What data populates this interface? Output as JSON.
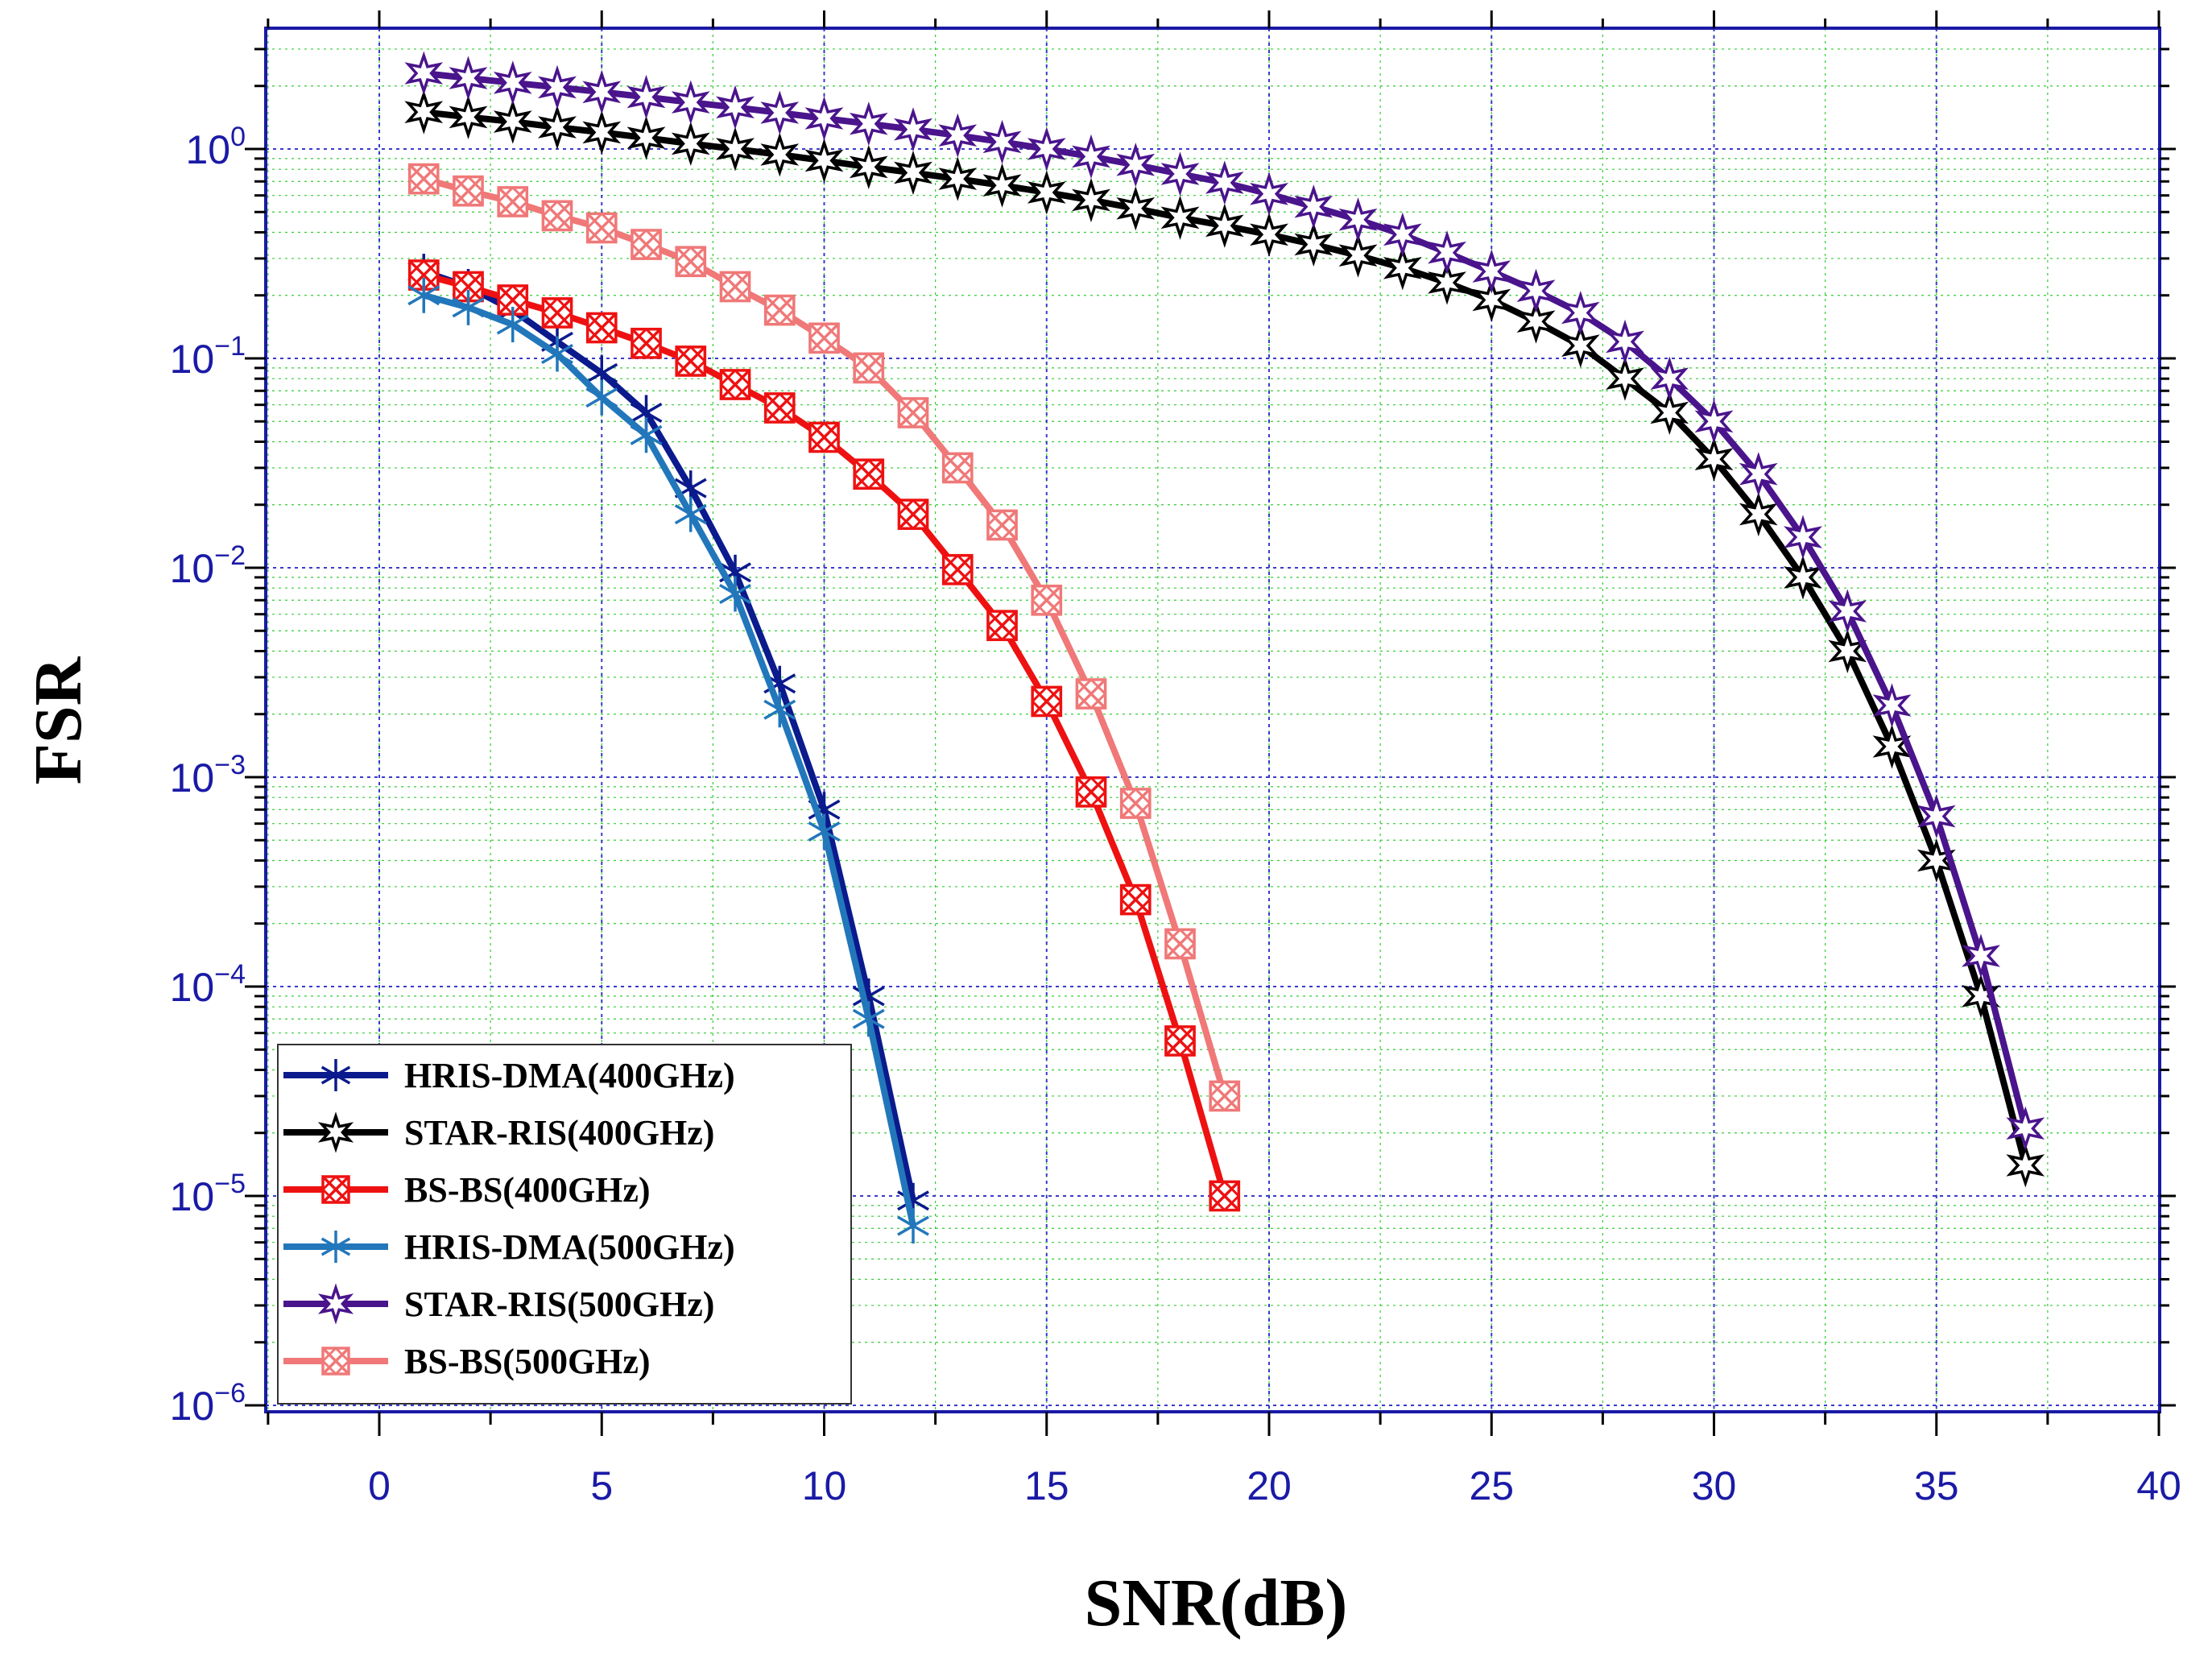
{
  "chart_data": {
    "type": "line",
    "title": "",
    "xlabel": "SNR(dB)",
    "ylabel": "FSR",
    "xlim": [
      -2.5,
      40
    ],
    "ylim": [
      1e-06,
      3.5
    ],
    "yscale": "log",
    "grid": true,
    "legend_position": "bottom-left",
    "xticks": [
      0,
      5,
      10,
      15,
      20,
      25,
      30,
      35,
      40
    ],
    "xtick_labels": [
      "0",
      "5",
      "10",
      "15",
      "20",
      "25",
      "30",
      "35",
      "40"
    ],
    "yticks": [
      {
        "value": 1,
        "base": "10",
        "exp": "0"
      },
      {
        "value": 0.1,
        "base": "10",
        "exp": "−1"
      },
      {
        "value": 0.01,
        "base": "10",
        "exp": "−2"
      },
      {
        "value": 0.001,
        "base": "10",
        "exp": "−3"
      },
      {
        "value": 0.0001,
        "base": "10",
        "exp": "−4"
      },
      {
        "value": 1e-05,
        "base": "10",
        "exp": "−5"
      },
      {
        "value": 1e-06,
        "base": "10",
        "exp": "−6"
      }
    ],
    "series": [
      {
        "name": "HRIS-DMA(400GHz)",
        "color": "#0b1a8c",
        "marker": "asterisk",
        "x": [
          1,
          2,
          3,
          4,
          5,
          6,
          7,
          8,
          9,
          10,
          11,
          12
        ],
        "values": [
          0.26,
          0.22,
          0.17,
          0.12,
          0.085,
          0.055,
          0.024,
          0.0095,
          0.0028,
          0.0007,
          9e-05,
          9.5e-06
        ]
      },
      {
        "name": "STAR-RIS(400GHz)",
        "color": "#000000",
        "marker": "star",
        "x": [
          1,
          2,
          3,
          4,
          5,
          6,
          7,
          8,
          9,
          10,
          11,
          12,
          13,
          14,
          15,
          16,
          17,
          18,
          19,
          20,
          21,
          22,
          23,
          24,
          25,
          26,
          27,
          28,
          29,
          30,
          31,
          32,
          33,
          34,
          35,
          36,
          37
        ],
        "values": [
          1.5,
          1.42,
          1.35,
          1.27,
          1.2,
          1.13,
          1.06,
          1.0,
          0.94,
          0.88,
          0.82,
          0.77,
          0.72,
          0.67,
          0.62,
          0.57,
          0.52,
          0.47,
          0.43,
          0.39,
          0.35,
          0.31,
          0.27,
          0.23,
          0.19,
          0.15,
          0.115,
          0.08,
          0.055,
          0.033,
          0.018,
          0.009,
          0.004,
          0.0014,
          0.0004,
          9e-05,
          1.4e-05
        ]
      },
      {
        "name": "BS-BS(400GHz)",
        "color": "#ee1111",
        "marker": "xbox",
        "x": [
          1,
          2,
          3,
          4,
          5,
          6,
          7,
          8,
          9,
          10,
          11,
          12,
          13,
          14,
          15,
          16,
          17,
          18,
          19
        ],
        "values": [
          0.25,
          0.22,
          0.19,
          0.165,
          0.14,
          0.118,
          0.097,
          0.075,
          0.058,
          0.042,
          0.028,
          0.018,
          0.0098,
          0.0053,
          0.0023,
          0.00085,
          0.00026,
          5.5e-05,
          1e-05
        ]
      },
      {
        "name": "HRIS-DMA(500GHz)",
        "color": "#2277bb",
        "marker": "asterisk",
        "x": [
          1,
          2,
          3,
          4,
          5,
          6,
          7,
          8,
          9,
          10,
          11,
          12
        ],
        "values": [
          0.2,
          0.175,
          0.145,
          0.105,
          0.065,
          0.043,
          0.018,
          0.0075,
          0.0021,
          0.00055,
          7e-05,
          7.2e-06
        ]
      },
      {
        "name": "STAR-RIS(500GHz)",
        "color": "#4a148c",
        "marker": "star",
        "x": [
          1,
          2,
          3,
          4,
          5,
          6,
          7,
          8,
          9,
          10,
          11,
          12,
          13,
          14,
          15,
          16,
          17,
          18,
          19,
          20,
          21,
          22,
          23,
          24,
          25,
          26,
          27,
          28,
          29,
          30,
          31,
          32,
          33,
          34,
          35,
          36,
          37
        ],
        "values": [
          2.3,
          2.18,
          2.07,
          1.97,
          1.87,
          1.77,
          1.67,
          1.58,
          1.49,
          1.4,
          1.32,
          1.24,
          1.16,
          1.08,
          1.0,
          0.92,
          0.84,
          0.76,
          0.69,
          0.61,
          0.53,
          0.46,
          0.39,
          0.32,
          0.26,
          0.21,
          0.165,
          0.12,
          0.08,
          0.05,
          0.028,
          0.014,
          0.0062,
          0.0022,
          0.00065,
          0.00014,
          2.1e-05
        ]
      },
      {
        "name": "BS-BS(500GHz)",
        "color": "#f07878",
        "marker": "xbox",
        "x": [
          1,
          2,
          3,
          4,
          5,
          6,
          7,
          8,
          9,
          10,
          11,
          12,
          13,
          14,
          15,
          16,
          17,
          18,
          19
        ],
        "values": [
          0.72,
          0.63,
          0.56,
          0.48,
          0.42,
          0.35,
          0.29,
          0.22,
          0.17,
          0.125,
          0.09,
          0.055,
          0.03,
          0.016,
          0.007,
          0.0025,
          0.00075,
          0.00016,
          3e-05
        ]
      }
    ]
  }
}
